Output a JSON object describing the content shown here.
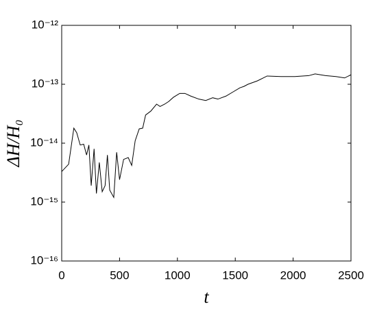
{
  "chart_data": {
    "type": "line",
    "xlabel": "t",
    "ylabel": "ΔH/H₀",
    "yscale": "log",
    "color": "#000000",
    "xlim": [
      0,
      2500
    ],
    "xticks": [
      0,
      500,
      1000,
      1500,
      2000,
      2500
    ],
    "ylim": [
      1e-16,
      1e-12
    ],
    "yticks": [
      {
        "value": 1e-16,
        "label": "10⁻¹⁶"
      },
      {
        "value": 1e-15,
        "label": "10⁻¹⁵"
      },
      {
        "value": 1e-14,
        "label": "10⁻¹⁴"
      },
      {
        "value": 1e-13,
        "label": "10⁻¹³"
      },
      {
        "value": 1e-12,
        "label": "10⁻¹²"
      }
    ],
    "x": [
      0,
      60,
      105,
      130,
      160,
      190,
      215,
      235,
      255,
      280,
      300,
      325,
      350,
      375,
      395,
      415,
      450,
      475,
      500,
      535,
      575,
      605,
      635,
      670,
      700,
      725,
      770,
      820,
      850,
      890,
      925,
      965,
      1020,
      1065,
      1115,
      1185,
      1245,
      1305,
      1350,
      1420,
      1480,
      1540,
      1575,
      1610,
      1690,
      1775,
      1895,
      2015,
      2135,
      2190,
      2280,
      2370,
      2445,
      2500
    ],
    "values": [
      3.3e-15,
      4.4e-15,
      1.8e-14,
      1.5e-14,
      9.3e-15,
      9.6e-15,
      6.3e-15,
      9.3e-15,
      1.9e-15,
      8e-15,
      1.4e-15,
      4.7e-15,
      1.5e-15,
      1.9e-15,
      6.3e-15,
      1.6e-15,
      1.2e-15,
      7e-15,
      2.4e-15,
      5.3e-15,
      5.7e-15,
      4.2e-15,
      1.1e-14,
      1.75e-14,
      1.8e-14,
      3e-14,
      3.5e-14,
      4.6e-14,
      4.2e-14,
      4.6e-14,
      5.1e-14,
      6e-14,
      7e-14,
      7e-14,
      6.3e-14,
      5.6e-14,
      5.3e-14,
      5.9e-14,
      5.6e-14,
      6.3e-14,
      7.4e-14,
      8.7e-14,
      9.2e-14,
      1e-13,
      1.14e-13,
      1.38e-13,
      1.35e-13,
      1.35e-13,
      1.4e-13,
      1.5e-13,
      1.4e-13,
      1.35e-13,
      1.28e-13,
      1.45e-13
    ]
  }
}
